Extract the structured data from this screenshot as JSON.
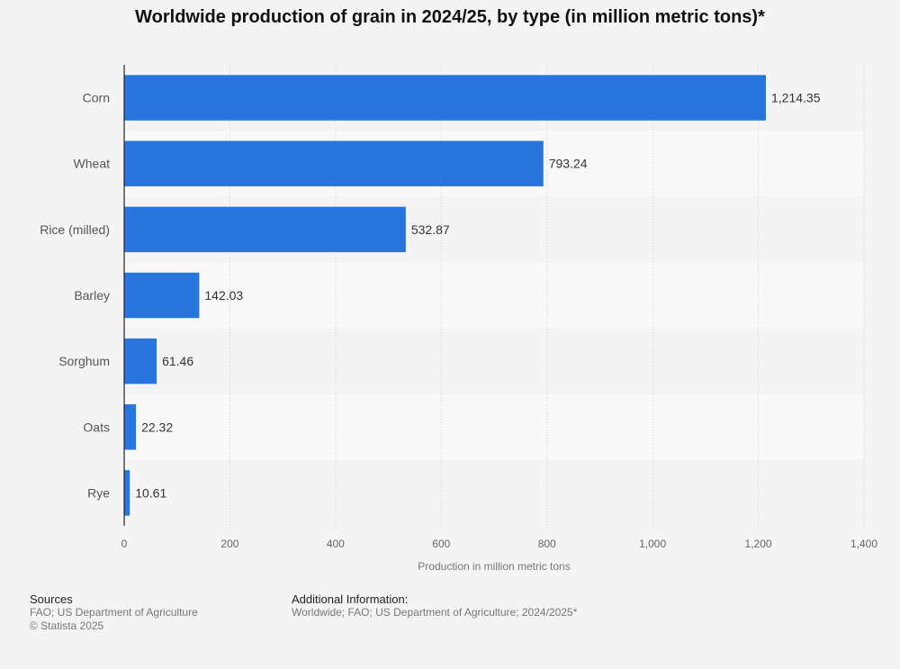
{
  "chart_data": {
    "type": "bar",
    "orientation": "horizontal",
    "title": "Worldwide production of grain in 2024/25, by type (in million metric tons)*",
    "categories": [
      "Corn",
      "Wheat",
      "Rice (milled)",
      "Barley",
      "Sorghum",
      "Oats",
      "Rye"
    ],
    "values": [
      1214.35,
      793.24,
      532.87,
      142.03,
      61.46,
      22.32,
      10.61
    ],
    "value_labels": [
      "1,214.35",
      "793.24",
      "532.87",
      "142.03",
      "61.46",
      "22.32",
      "10.61"
    ],
    "xlabel": "Production in million metric tons",
    "ylabel": "",
    "xlim": [
      0,
      1400
    ],
    "ticks": [
      0,
      200,
      400,
      600,
      800,
      1000,
      1200,
      1400
    ],
    "tick_labels": [
      "0",
      "200",
      "400",
      "600",
      "800",
      "1,000",
      "1,200",
      "1,400"
    ],
    "grid": true,
    "bar_color": "#2876dd"
  },
  "footer": {
    "sources_heading": "Sources",
    "sources_text": "FAO; US Department of Agriculture",
    "copyright": "© Statista 2025",
    "additional_heading": "Additional Information:",
    "additional_text": "Worldwide; FAO; US Department of Agriculture; 2024/2025*"
  }
}
